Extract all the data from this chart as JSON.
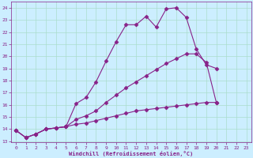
{
  "title": "",
  "xlabel": "Windchill (Refroidissement éolien,°C)",
  "bg_color": "#cceeff",
  "grid_color": "#aaddcc",
  "line_color": "#882288",
  "ylim": [
    13,
    24.5
  ],
  "xlim": [
    -0.5,
    23.5
  ],
  "yticks": [
    13,
    14,
    15,
    16,
    17,
    18,
    19,
    20,
    21,
    22,
    23,
    24
  ],
  "xticks": [
    0,
    1,
    2,
    3,
    4,
    5,
    6,
    7,
    8,
    9,
    10,
    11,
    12,
    13,
    14,
    15,
    16,
    17,
    18,
    19,
    20,
    21,
    22,
    23
  ],
  "line1_x": [
    0,
    1,
    2,
    3,
    4,
    5,
    6,
    7,
    8,
    9,
    10,
    11,
    12,
    13,
    14,
    15,
    16,
    17,
    18,
    19,
    20
  ],
  "line1_y": [
    13.9,
    13.3,
    13.6,
    14.0,
    14.1,
    14.2,
    16.1,
    16.6,
    17.9,
    19.6,
    21.2,
    22.6,
    22.6,
    23.3,
    22.4,
    23.9,
    24.0,
    23.2,
    20.6,
    19.3,
    19.0
  ],
  "line2_x": [
    0,
    1,
    2,
    3,
    4,
    5,
    6,
    7,
    8,
    9,
    10,
    11,
    12,
    13,
    14,
    15,
    16,
    17,
    18,
    19,
    20
  ],
  "line2_y": [
    13.9,
    13.3,
    13.6,
    14.0,
    14.1,
    14.2,
    14.8,
    15.1,
    15.5,
    16.2,
    16.8,
    17.4,
    17.9,
    18.4,
    18.9,
    19.4,
    19.8,
    20.2,
    20.2,
    19.5,
    16.2
  ],
  "line3_x": [
    0,
    1,
    2,
    3,
    4,
    5,
    6,
    7,
    8,
    9,
    10,
    11,
    12,
    13,
    14,
    15,
    16,
    17,
    18,
    19,
    20
  ],
  "line3_y": [
    13.9,
    13.3,
    13.6,
    14.0,
    14.1,
    14.2,
    14.4,
    14.5,
    14.7,
    14.9,
    15.1,
    15.3,
    15.5,
    15.6,
    15.7,
    15.8,
    15.9,
    16.0,
    16.1,
    16.2,
    16.2
  ]
}
